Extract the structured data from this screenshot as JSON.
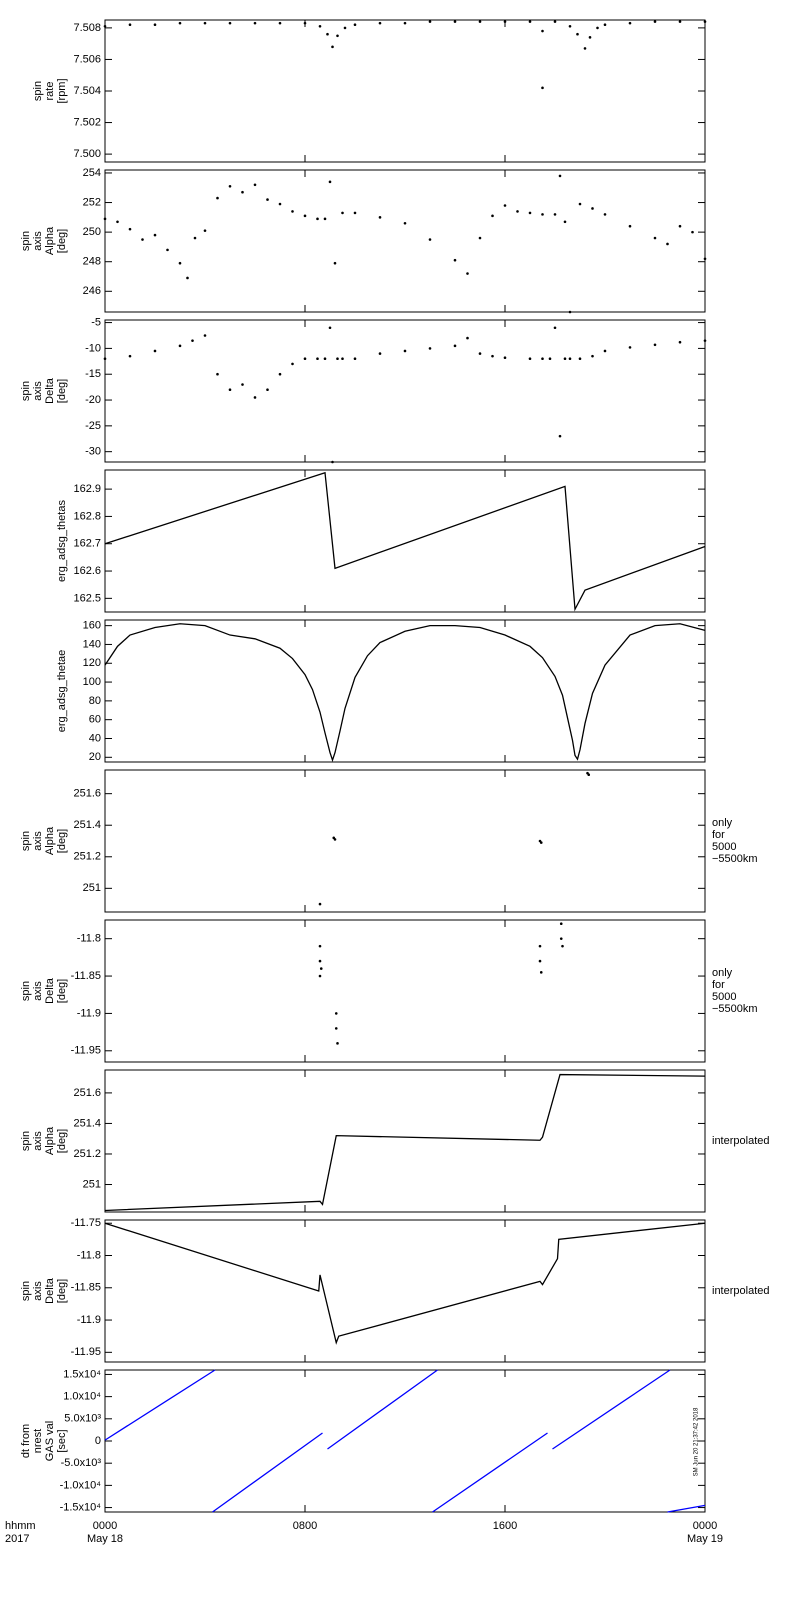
{
  "chart_data": [
    {
      "type": "scatter",
      "ylabel": [
        "spin",
        "rate",
        "[rpm]"
      ],
      "xlim": [
        0,
        24
      ],
      "xticks": [
        0,
        8,
        16,
        24
      ],
      "ylim": [
        7.4995,
        7.5085
      ],
      "yticks": [
        {
          "value": 7.5,
          "label": "7.500"
        },
        7.502,
        7.504,
        7.506,
        7.508
      ],
      "color": "#000000",
      "x": [
        0,
        1,
        2,
        3,
        4,
        5,
        6,
        7,
        8,
        8.6,
        8.9,
        9.1,
        9.3,
        9.6,
        10,
        11,
        12,
        13,
        14,
        15,
        16,
        17,
        17.5,
        17.5,
        18,
        18.6,
        18.9,
        19.2,
        19.4,
        19.7,
        20,
        21,
        22,
        23,
        24
      ],
      "values": [
        7.5081,
        7.5082,
        7.5082,
        7.5083,
        7.5083,
        7.5083,
        7.5083,
        7.5083,
        7.5083,
        7.5081,
        7.5076,
        7.5068,
        7.5075,
        7.508,
        7.5082,
        7.5083,
        7.5083,
        7.5084,
        7.5084,
        7.5084,
        7.5084,
        7.5084,
        7.5042,
        7.5078,
        7.5084,
        7.5081,
        7.5076,
        7.5067,
        7.5074,
        7.508,
        7.5082,
        7.5083,
        7.5084,
        7.5084,
        7.5084
      ]
    },
    {
      "type": "scatter",
      "ylabel": [
        "spin",
        "axis",
        "Alpha",
        "[deg]"
      ],
      "xlim": [
        0,
        24
      ],
      "xticks": [
        0,
        8,
        16,
        24
      ],
      "ylim": [
        244.6,
        254.2
      ],
      "yticks": [
        246,
        248,
        250,
        252,
        254
      ],
      "color": "#000000",
      "x": [
        0,
        0.5,
        1,
        1.5,
        2,
        2.5,
        3,
        3.3,
        3.6,
        4,
        4.5,
        5,
        5.5,
        6,
        6.5,
        7,
        7.5,
        8,
        8.5,
        8.8,
        9,
        9.2,
        9.5,
        10,
        11,
        12,
        13,
        14,
        14.5,
        15,
        15.5,
        16,
        16.5,
        17,
        17.5,
        18,
        18.2,
        18.4,
        18.6,
        19,
        19.5,
        20,
        21,
        22,
        22.5,
        23,
        23.5,
        24
      ],
      "values": [
        250.9,
        250.7,
        250.2,
        249.5,
        249.8,
        248.8,
        247.9,
        246.9,
        249.6,
        250.1,
        252.3,
        253.1,
        252.7,
        253.2,
        252.2,
        251.9,
        251.4,
        251.1,
        250.9,
        250.9,
        253.4,
        247.9,
        251.3,
        251.3,
        251.0,
        250.6,
        249.5,
        248.1,
        247.2,
        249.6,
        251.1,
        251.8,
        251.4,
        251.3,
        251.2,
        251.2,
        253.8,
        250.7,
        244.6,
        251.9,
        251.6,
        251.2,
        250.4,
        249.6,
        249.2,
        250.4,
        250.0,
        248.2
      ]
    },
    {
      "type": "scatter",
      "ylabel": [
        "spin",
        "axis",
        "Delta",
        "[deg]"
      ],
      "xlim": [
        0,
        24
      ],
      "xticks": [
        0,
        8,
        16,
        24
      ],
      "ylim": [
        -32,
        -4.5
      ],
      "yticks": [
        -30,
        -25,
        -20,
        -15,
        -10,
        -5
      ],
      "color": "#000000",
      "x": [
        0,
        1,
        2,
        3,
        3.5,
        4,
        4.5,
        5,
        5.5,
        6,
        6.5,
        7,
        7.5,
        8,
        8.5,
        8.8,
        9,
        9.1,
        9.3,
        9.5,
        10,
        11,
        12,
        13,
        14,
        14.5,
        15,
        15.5,
        16,
        17,
        17.5,
        17.8,
        18,
        18.2,
        18.4,
        18.6,
        19,
        19.5,
        20,
        21,
        22,
        23,
        24
      ],
      "values": [
        -12,
        -11.5,
        -10.5,
        -9.5,
        -8.5,
        -7.5,
        -15,
        -18,
        -17,
        -19.5,
        -18,
        -15,
        -13,
        -12,
        -12,
        -12,
        -6,
        -32,
        -12,
        -12,
        -12,
        -11,
        -10.5,
        -10,
        -9.5,
        -8,
        -11,
        -11.5,
        -11.8,
        -12,
        -12,
        -12,
        -6,
        -27,
        -12,
        -12,
        -12,
        -11.5,
        -10.5,
        -9.8,
        -9.3,
        -8.8,
        -8.5
      ]
    },
    {
      "type": "line",
      "ylabel": [
        "erg_adsg_thetas"
      ],
      "xlim": [
        0,
        24
      ],
      "xticks": [
        0,
        8,
        16,
        24
      ],
      "ylim": [
        162.45,
        162.97
      ],
      "yticks": [
        162.5,
        162.6,
        162.7,
        162.8,
        162.9
      ],
      "color": "#000000",
      "x": [
        0,
        8.8,
        9.2,
        18.4,
        18.8,
        19.2,
        24
      ],
      "values": [
        162.7,
        162.96,
        162.61,
        162.91,
        162.46,
        162.53,
        162.69
      ]
    },
    {
      "type": "line",
      "ylabel": [
        "erg_adsg_thetae"
      ],
      "xlim": [
        0,
        24
      ],
      "xticks": [
        0,
        8,
        16,
        24
      ],
      "ylim": [
        15,
        166
      ],
      "yticks": [
        20,
        40,
        60,
        80,
        100,
        120,
        140,
        160
      ],
      "color": "#000000",
      "x": [
        0,
        0.5,
        1,
        2,
        3,
        4,
        5,
        6,
        7,
        7.5,
        8,
        8.3,
        8.6,
        8.8,
        9,
        9.1,
        9.2,
        9.4,
        9.6,
        10,
        10.5,
        11,
        12,
        13,
        14,
        15,
        16,
        17,
        17.5,
        18,
        18.3,
        18.5,
        18.7,
        18.8,
        18.9,
        19,
        19.2,
        19.5,
        20,
        21,
        22,
        23,
        24
      ],
      "values": [
        118,
        138,
        150,
        158,
        162,
        160,
        150,
        146,
        136,
        125,
        108,
        92,
        68,
        46,
        25,
        17,
        25,
        48,
        72,
        105,
        128,
        142,
        154,
        160,
        160,
        158,
        150,
        138,
        126,
        106,
        86,
        62,
        38,
        22,
        18,
        28,
        56,
        88,
        118,
        150,
        160,
        162,
        155
      ]
    },
    {
      "type": "scatter",
      "ylabel": [
        "spin",
        "axis",
        "Alpha",
        "[deg]"
      ],
      "note": [
        "only",
        "for",
        "5000",
        "−5500km"
      ],
      "xlim": [
        0,
        24
      ],
      "xticks": [
        0,
        8,
        16,
        24
      ],
      "ylim": [
        250.85,
        251.75
      ],
      "yticks": [
        251,
        251.2,
        251.4,
        251.6
      ],
      "color": "#000000",
      "x": [
        8.6,
        9.15,
        9.2,
        17.4,
        17.45,
        19.3,
        19.35
      ],
      "values": [
        250.9,
        251.32,
        251.31,
        251.3,
        251.29,
        251.73,
        251.72
      ]
    },
    {
      "type": "scatter",
      "ylabel": [
        "spin",
        "axis",
        "Delta",
        "[deg]"
      ],
      "note": [
        "only",
        "for",
        "5000",
        "−5500km"
      ],
      "xlim": [
        0,
        24
      ],
      "xticks": [
        0,
        8,
        16,
        24
      ],
      "ylim": [
        -11.965,
        -11.775
      ],
      "yticks": [
        -11.8,
        -11.85,
        -11.9,
        -11.95
      ],
      "color": "#000000",
      "x": [
        8.6,
        8.6,
        8.65,
        8.6,
        9.25,
        9.25,
        9.3,
        17.4,
        17.4,
        17.45,
        18.25,
        18.25,
        18.3
      ],
      "values": [
        -11.81,
        -11.83,
        -11.84,
        -11.85,
        -11.9,
        -11.92,
        -11.94,
        -11.81,
        -11.83,
        -11.845,
        -11.78,
        -11.8,
        -11.81
      ]
    },
    {
      "type": "line",
      "ylabel": [
        "spin",
        "axis",
        "Alpha",
        "[deg]"
      ],
      "note": [
        "interpolated"
      ],
      "xlim": [
        0,
        24
      ],
      "xticks": [
        0,
        8,
        16,
        24
      ],
      "ylim": [
        250.82,
        251.75
      ],
      "yticks": [
        251,
        251.2,
        251.4,
        251.6
      ],
      "color": "#000000",
      "x": [
        0,
        8.6,
        8.7,
        9.25,
        17.4,
        17.5,
        18.2,
        24
      ],
      "values": [
        250.83,
        250.89,
        250.87,
        251.32,
        251.29,
        251.31,
        251.72,
        251.71
      ]
    },
    {
      "type": "line",
      "ylabel": [
        "spin",
        "axis",
        "Delta",
        "[deg]"
      ],
      "note": [
        "interpolated"
      ],
      "xlim": [
        0,
        24
      ],
      "xticks": [
        0,
        8,
        16,
        24
      ],
      "ylim": [
        -11.965,
        -11.745
      ],
      "yticks": [
        -11.75,
        -11.8,
        -11.85,
        -11.9,
        -11.95
      ],
      "color": "#000000",
      "x": [
        0,
        8.55,
        8.6,
        9.25,
        9.35,
        17.4,
        17.5,
        18.1,
        18.15,
        24
      ],
      "values": [
        -11.75,
        -11.855,
        -11.83,
        -11.935,
        -11.925,
        -11.84,
        -11.845,
        -11.805,
        -11.775,
        -11.75
      ]
    },
    {
      "type": "line",
      "ylabel": [
        "dt from",
        "nrest",
        "GAS val",
        "[sec]"
      ],
      "stamp": "SM Jun 20 21:37:42 2018",
      "xlim": [
        0,
        24
      ],
      "xticks": [
        {
          "value": 0,
          "label": "0000"
        },
        {
          "value": 8,
          "label": "0800"
        },
        {
          "value": 16,
          "label": "1600"
        },
        {
          "value": 24,
          "label": "0000"
        }
      ],
      "x_dates": [
        {
          "value": 0,
          "label": "May 18"
        },
        {
          "value": 24,
          "label": "May 19"
        }
      ],
      "x_corner": [
        "hhmm",
        "2017"
      ],
      "ylim": [
        -16000,
        16000
      ],
      "yticks": [
        {
          "value": 15000,
          "label": "1.5x10⁴"
        },
        {
          "value": 10000,
          "label": "1.0x10⁴"
        },
        {
          "value": 5000,
          "label": "5.0x10³"
        },
        0,
        {
          "value": -5000,
          "label": "-5.0x10³"
        },
        {
          "value": -10000,
          "label": "-1.0x10⁴"
        },
        {
          "value": -15000,
          "label": "-1.5x10⁴"
        }
      ],
      "color": "#0000ff",
      "x": [
        0,
        4.4,
        null,
        4.3,
        8.7,
        null,
        8.9,
        13.3,
        null,
        13.1,
        17.7,
        null,
        17.9,
        22.6,
        null,
        22.5,
        24
      ],
      "values": [
        200,
        16000,
        null,
        -16000,
        1800,
        null,
        -1800,
        16000,
        null,
        -16000,
        1800,
        null,
        -1800,
        16000,
        null,
        -16000,
        -14500
      ]
    }
  ]
}
